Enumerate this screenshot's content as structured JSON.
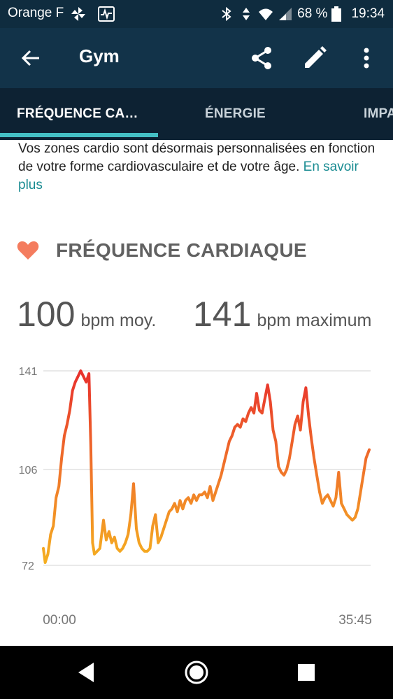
{
  "status_bar": {
    "carrier": "Orange F",
    "battery": "68 %",
    "time": "19:34"
  },
  "app_bar": {
    "title": "Gym"
  },
  "tabs": [
    {
      "label": "FRÉQUENCE CA…",
      "active": true
    },
    {
      "label": "ÉNERGIE",
      "active": false
    },
    {
      "label": "IMPA",
      "active": false
    }
  ],
  "note": {
    "text": "Vos zones cardio sont désormais personnalisées en fonction de votre forme cardiovasculaire et de votre âge. ",
    "link": "En savoir plus"
  },
  "heart_rate": {
    "section_title": "FRÉQUENCE CARDIAQUE",
    "avg_value": "100",
    "avg_unit": "bpm moy.",
    "max_value": "141",
    "max_unit": "bpm maximum"
  },
  "colors": {
    "accent": "#44c0c5",
    "link": "#1a8c92",
    "heart": "#f47c5e",
    "line_low": "#f5a623",
    "line_high": "#e8302c"
  },
  "chart_data": {
    "type": "line",
    "ylim": [
      72,
      141
    ],
    "y_ticks": [
      "141",
      "106",
      "72"
    ],
    "x_ticks": [
      "00:00",
      "35:45"
    ],
    "x_range_minutes": [
      0,
      35.75
    ],
    "series": [
      {
        "values": [
          [
            0.0,
            78
          ],
          [
            0.2,
            73
          ],
          [
            0.5,
            76
          ],
          [
            0.8,
            83
          ],
          [
            1.1,
            86
          ],
          [
            1.4,
            96
          ],
          [
            1.7,
            100
          ],
          [
            2.0,
            110
          ],
          [
            2.3,
            118
          ],
          [
            2.6,
            122
          ],
          [
            2.9,
            127
          ],
          [
            3.2,
            134
          ],
          [
            3.5,
            137
          ],
          [
            3.8,
            139
          ],
          [
            4.1,
            141
          ],
          [
            4.4,
            139
          ],
          [
            4.7,
            137
          ],
          [
            5.0,
            140
          ],
          [
            5.2,
            115
          ],
          [
            5.4,
            80
          ],
          [
            5.6,
            76
          ],
          [
            5.9,
            77
          ],
          [
            6.2,
            78
          ],
          [
            6.6,
            88
          ],
          [
            6.9,
            81
          ],
          [
            7.2,
            84
          ],
          [
            7.5,
            80
          ],
          [
            7.8,
            82
          ],
          [
            8.1,
            78
          ],
          [
            8.4,
            77
          ],
          [
            8.7,
            78
          ],
          [
            9.0,
            80
          ],
          [
            9.3,
            83
          ],
          [
            9.6,
            90
          ],
          [
            9.9,
            101
          ],
          [
            10.2,
            85
          ],
          [
            10.5,
            80
          ],
          [
            10.8,
            78
          ],
          [
            11.1,
            77
          ],
          [
            11.4,
            77
          ],
          [
            11.7,
            78
          ],
          [
            12.0,
            86
          ],
          [
            12.3,
            90
          ],
          [
            12.6,
            80
          ],
          [
            12.9,
            82
          ],
          [
            13.2,
            85
          ],
          [
            13.5,
            88
          ],
          [
            13.8,
            91
          ],
          [
            14.1,
            92
          ],
          [
            14.4,
            94
          ],
          [
            14.7,
            91
          ],
          [
            15.0,
            95
          ],
          [
            15.3,
            92
          ],
          [
            15.6,
            95
          ],
          [
            15.9,
            96
          ],
          [
            16.2,
            94
          ],
          [
            16.5,
            97
          ],
          [
            16.8,
            95
          ],
          [
            17.1,
            97
          ],
          [
            17.4,
            97
          ],
          [
            17.7,
            98
          ],
          [
            18.0,
            96
          ],
          [
            18.3,
            100
          ],
          [
            18.6,
            95
          ],
          [
            18.9,
            98
          ],
          [
            19.2,
            101
          ],
          [
            19.5,
            104
          ],
          [
            19.8,
            108
          ],
          [
            20.1,
            112
          ],
          [
            20.4,
            116
          ],
          [
            20.7,
            118
          ],
          [
            21.0,
            121
          ],
          [
            21.3,
            122
          ],
          [
            21.6,
            121
          ],
          [
            21.9,
            124
          ],
          [
            22.2,
            123
          ],
          [
            22.5,
            126
          ],
          [
            22.8,
            128
          ],
          [
            23.1,
            126
          ],
          [
            23.4,
            133
          ],
          [
            23.7,
            127
          ],
          [
            24.0,
            126
          ],
          [
            24.3,
            131
          ],
          [
            24.6,
            136
          ],
          [
            24.9,
            130
          ],
          [
            25.2,
            120
          ],
          [
            25.5,
            116
          ],
          [
            25.8,
            107
          ],
          [
            26.1,
            105
          ],
          [
            26.4,
            104
          ],
          [
            26.7,
            106
          ],
          [
            27.0,
            110
          ],
          [
            27.3,
            116
          ],
          [
            27.6,
            122
          ],
          [
            27.9,
            125
          ],
          [
            28.2,
            120
          ],
          [
            28.5,
            130
          ],
          [
            28.8,
            135
          ],
          [
            29.1,
            125
          ],
          [
            29.4,
            117
          ],
          [
            29.7,
            110
          ],
          [
            30.0,
            104
          ],
          [
            30.3,
            98
          ],
          [
            30.6,
            94
          ],
          [
            30.9,
            96
          ],
          [
            31.2,
            97
          ],
          [
            31.5,
            95
          ],
          [
            31.8,
            93
          ],
          [
            32.1,
            96
          ],
          [
            32.4,
            105
          ],
          [
            32.7,
            94
          ],
          [
            33.0,
            92
          ],
          [
            33.3,
            90
          ],
          [
            33.6,
            89
          ],
          [
            33.9,
            88
          ],
          [
            34.2,
            89
          ],
          [
            34.5,
            92
          ],
          [
            34.8,
            98
          ],
          [
            35.1,
            104
          ],
          [
            35.4,
            110
          ],
          [
            35.75,
            113
          ]
        ]
      }
    ]
  }
}
